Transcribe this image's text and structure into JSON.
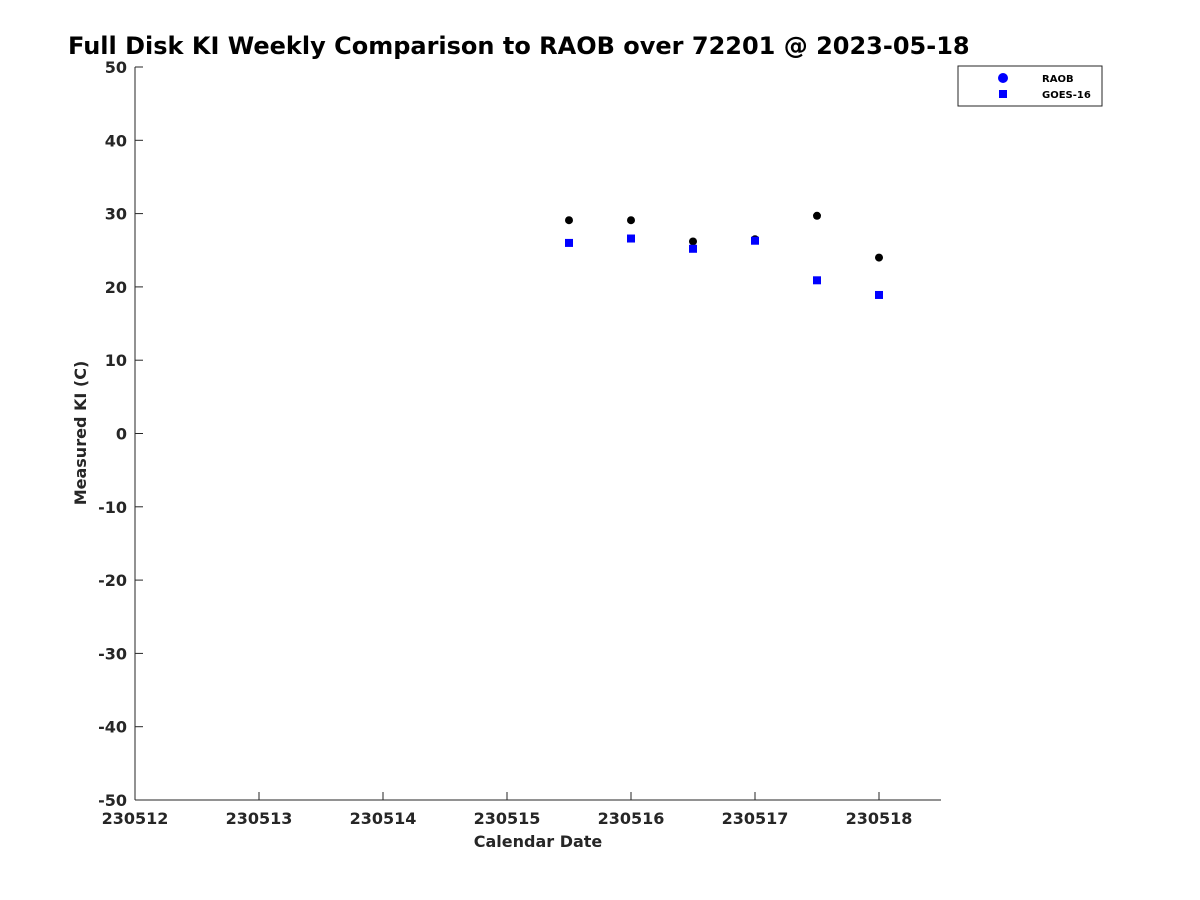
{
  "chart_data": {
    "type": "scatter",
    "title": "Full Disk KI Weekly Comparison to RAOB over 72201 @ 2023-05-18",
    "xlabel": "Calendar Date",
    "ylabel": "Measured KI (C)",
    "xlim": [
      230512,
      230518.5
    ],
    "ylim": [
      -50,
      50
    ],
    "x_ticks": [
      {
        "value": 230512,
        "label": "230512"
      },
      {
        "value": 230513,
        "label": "230513"
      },
      {
        "value": 230514,
        "label": "230514"
      },
      {
        "value": 230515,
        "label": "230515"
      },
      {
        "value": 230516,
        "label": "230516"
      },
      {
        "value": 230517,
        "label": "230517"
      },
      {
        "value": 230518,
        "label": "230518"
      }
    ],
    "y_ticks": [
      {
        "value": 50,
        "label": "50"
      },
      {
        "value": 40,
        "label": "40"
      },
      {
        "value": 30,
        "label": "30"
      },
      {
        "value": 20,
        "label": "20"
      },
      {
        "value": 10,
        "label": "10"
      },
      {
        "value": 0,
        "label": "0"
      },
      {
        "value": -10,
        "label": "-10"
      },
      {
        "value": -20,
        "label": "-20"
      },
      {
        "value": -30,
        "label": "-30"
      },
      {
        "value": -40,
        "label": "-40"
      },
      {
        "value": -50,
        "label": "-50"
      }
    ],
    "grid": false,
    "legend_position": "top-right",
    "series": [
      {
        "name": "RAOB",
        "marker": "circle",
        "color": "#000000",
        "legend_color": "#0000ff",
        "points": [
          {
            "x": 230515.5,
            "y": 29.1
          },
          {
            "x": 230516.0,
            "y": 29.1
          },
          {
            "x": 230516.5,
            "y": 26.2
          },
          {
            "x": 230517.0,
            "y": 26.5
          },
          {
            "x": 230517.5,
            "y": 29.7
          },
          {
            "x": 230518.0,
            "y": 24.0
          }
        ]
      },
      {
        "name": "GOES-16",
        "marker": "square",
        "color": "#0000ff",
        "legend_color": "#0000ff",
        "points": [
          {
            "x": 230515.5,
            "y": 26.0
          },
          {
            "x": 230516.0,
            "y": 26.6
          },
          {
            "x": 230516.5,
            "y": 25.2
          },
          {
            "x": 230517.0,
            "y": 26.3
          },
          {
            "x": 230517.5,
            "y": 20.9
          },
          {
            "x": 230518.0,
            "y": 18.9
          }
        ]
      }
    ]
  }
}
